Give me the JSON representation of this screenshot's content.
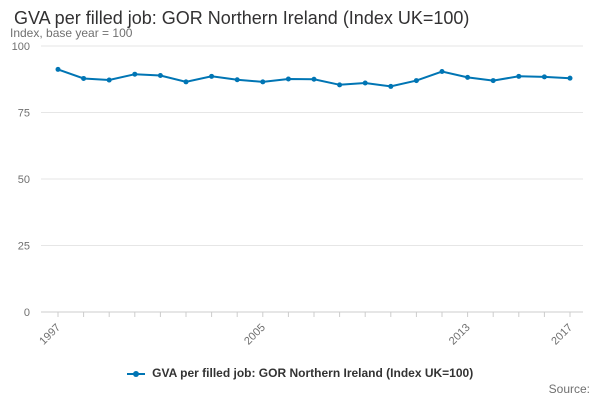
{
  "chart_data": {
    "type": "line",
    "title": "GVA per filled job: GOR Northern Ireland (Index UK=100)",
    "ylabel": "Index, base year = 100",
    "ylim": [
      0,
      100
    ],
    "yticks": [
      0,
      25,
      50,
      75,
      100
    ],
    "xlim": [
      1997,
      2017
    ],
    "xticks": [
      1997,
      2005,
      2013,
      2017
    ],
    "grid": true,
    "legend_position": "bottom",
    "series": [
      {
        "name": "GVA per filled job: GOR Northern Ireland (Index UK=100)",
        "color": "#0075b4",
        "x": [
          1997,
          1998,
          1999,
          2000,
          2001,
          2002,
          2003,
          2004,
          2005,
          2006,
          2007,
          2008,
          2009,
          2010,
          2011,
          2012,
          2013,
          2014,
          2015,
          2016,
          2017
        ],
        "values": [
          91.2,
          87.8,
          87.2,
          89.4,
          88.9,
          86.5,
          88.6,
          87.3,
          86.5,
          87.6,
          87.5,
          85.4,
          86.1,
          84.8,
          87.0,
          90.4,
          88.2,
          87.0,
          88.6,
          88.4,
          87.9
        ]
      }
    ]
  },
  "source_label": "Source:"
}
